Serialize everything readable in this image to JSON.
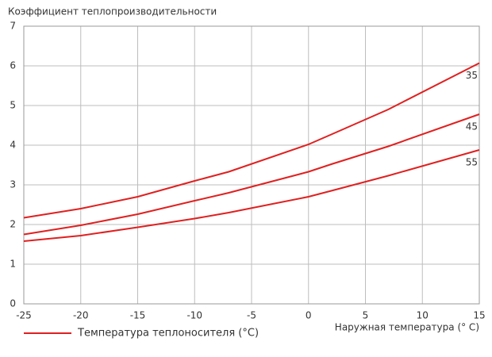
{
  "chart_data": {
    "type": "line",
    "title": "Коэффициент теплопроизводительности",
    "x_label": "Наружная температура (° C)",
    "legend_title": "Температура теплоносителя (°C)",
    "legend_color": "#e02020",
    "x": [
      -25,
      -20,
      -15,
      -10,
      -7,
      0,
      2,
      7,
      15
    ],
    "series": [
      {
        "name": "35",
        "color": "#e02020",
        "values": [
          2.17,
          2.4,
          2.7,
          3.1,
          3.33,
          4.02,
          4.27,
          4.9,
          6.07
        ]
      },
      {
        "name": "45",
        "color": "#e02020",
        "values": [
          1.75,
          1.98,
          2.26,
          2.6,
          2.8,
          3.33,
          3.52,
          3.97,
          4.78
        ]
      },
      {
        "name": "55",
        "color": "#e02020",
        "values": [
          1.58,
          1.72,
          1.93,
          2.15,
          2.3,
          2.7,
          2.85,
          3.23,
          3.88
        ]
      }
    ],
    "xlim": [
      -25,
      15
    ],
    "xticks": [
      -25,
      -20,
      -15,
      -10,
      -5,
      0,
      5,
      10,
      15
    ],
    "ylim": [
      0,
      7
    ],
    "yticks": [
      0,
      1,
      2,
      3,
      4,
      5,
      6,
      7
    ],
    "grid": true
  }
}
